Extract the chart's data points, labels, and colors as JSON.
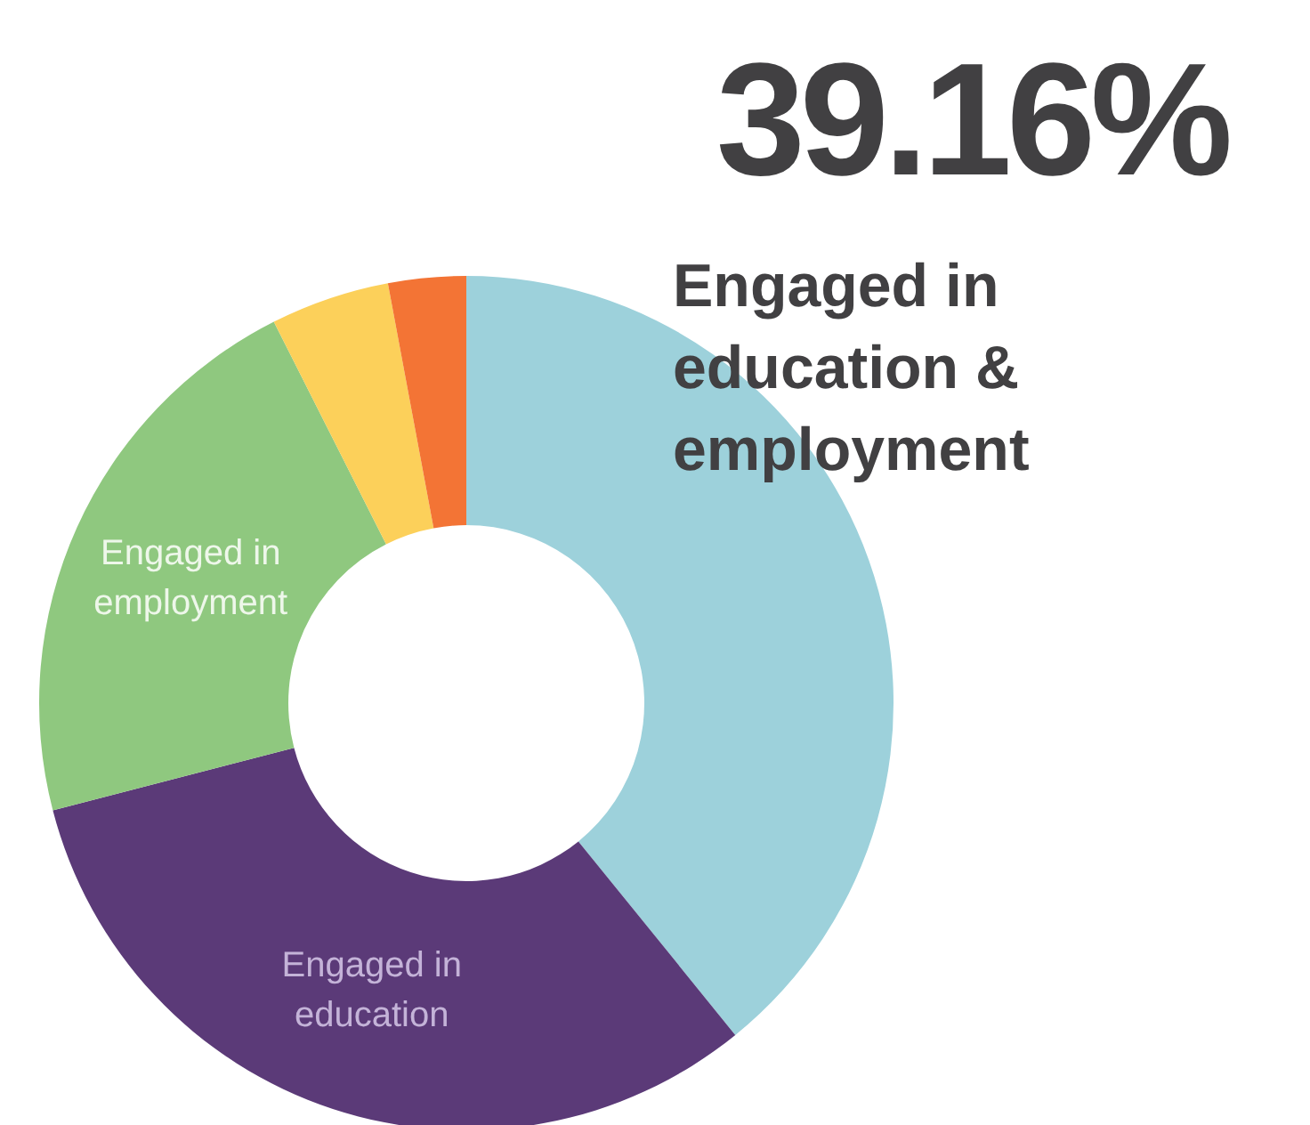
{
  "chart_data": {
    "type": "donut",
    "categories": [
      "Engaged in education & employment",
      "Engaged in education",
      "Engaged in employment",
      null,
      null
    ],
    "values": [
      39.16,
      31.8,
      21.6,
      4.5,
      2.94
    ],
    "colors": [
      "#9dd1db",
      "#5b3a78",
      "#8fc87f",
      "#fcd05a",
      "#f37435"
    ],
    "value_labels": [
      "39.16%",
      null,
      null,
      null,
      null
    ]
  }
}
